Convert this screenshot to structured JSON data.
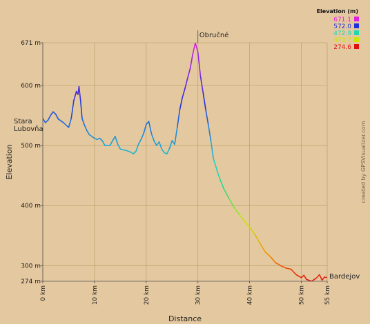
{
  "chart_data": {
    "type": "line",
    "xlabel": "Distance",
    "ylabel": "Elevation",
    "xlim": [
      0,
      55
    ],
    "ylim": [
      274,
      671
    ],
    "x_ticks": [
      {
        "value": 0,
        "label": "0 km"
      },
      {
        "value": 10,
        "label": "10 km"
      },
      {
        "value": 20,
        "label": "20 km"
      },
      {
        "value": 30,
        "label": "30 km"
      },
      {
        "value": 40,
        "label": "40 km"
      },
      {
        "value": 50,
        "label": "50 km"
      },
      {
        "value": 55,
        "label": "55 km"
      }
    ],
    "y_ticks": [
      {
        "value": 671,
        "label": "671 m"
      },
      {
        "value": 600,
        "label": "600 m"
      },
      {
        "value": 500,
        "label": "500 m"
      },
      {
        "value": 400,
        "label": "400 m"
      },
      {
        "value": 300,
        "label": "300 m"
      },
      {
        "value": 274,
        "label": "274 m"
      }
    ],
    "grid": true,
    "series": [
      {
        "x": [
          0,
          0.5,
          1,
          1.5,
          2,
          2.5,
          3,
          4,
          5,
          5.5,
          6,
          6.5,
          6.8,
          7,
          7.3,
          7.6,
          8,
          8.5,
          9,
          10,
          10.5,
          11,
          11.5,
          12,
          13,
          13.5,
          14,
          14.5,
          15,
          16,
          17,
          17.5,
          18,
          18.5,
          19,
          19.5,
          20,
          20.5,
          21,
          21.5,
          22,
          22.5,
          23,
          23.5,
          24,
          24.5,
          25,
          25.5,
          26,
          26.5,
          27,
          27.5,
          28,
          28.5,
          29,
          29.5,
          30,
          30.5,
          31,
          31.5,
          32,
          32.5,
          33,
          34,
          35,
          36,
          37,
          38,
          39,
          40,
          41,
          42,
          43,
          44,
          45,
          46,
          47,
          48,
          49,
          50,
          50.5,
          51,
          52,
          53,
          53.5,
          54,
          54.5,
          55
        ],
        "y": [
          545,
          538,
          542,
          550,
          556,
          552,
          544,
          538,
          530,
          545,
          575,
          590,
          585,
          598,
          575,
          545,
          535,
          525,
          518,
          512,
          510,
          512,
          508,
          500,
          500,
          508,
          515,
          502,
          494,
          492,
          489,
          486,
          490,
          502,
          510,
          520,
          535,
          540,
          520,
          508,
          500,
          506,
          494,
          488,
          486,
          495,
          508,
          502,
          530,
          560,
          580,
          595,
          612,
          628,
          652,
          671,
          655,
          615,
          588,
          560,
          535,
          508,
          478,
          450,
          428,
          412,
          397,
          385,
          374,
          364,
          352,
          337,
          323,
          315,
          305,
          300,
          296,
          294,
          285,
          280,
          284,
          277,
          274,
          280,
          285,
          276,
          281,
          280
        ]
      }
    ],
    "annotations": [
      {
        "label_lines": [
          "Stara",
          "Lubovňa"
        ],
        "x": 0
      },
      {
        "label_lines": [
          "Obručné"
        ],
        "x": 30
      },
      {
        "label_lines": [
          "Bardejov"
        ],
        "x": 55
      }
    ],
    "legend": {
      "title": "Elevation (m)",
      "placement": "top-right",
      "entries": [
        {
          "label": "671.1",
          "color": "#e020e0"
        },
        {
          "label": "572.0",
          "color": "#2030d8"
        },
        {
          "label": "472.9",
          "color": "#20d8b0"
        },
        {
          "label": "373.7",
          "color": "#c8e800"
        },
        {
          "label": "274.6",
          "color": "#e01010"
        }
      ]
    }
  },
  "credit_text": "created by GPSVisualizer.com"
}
